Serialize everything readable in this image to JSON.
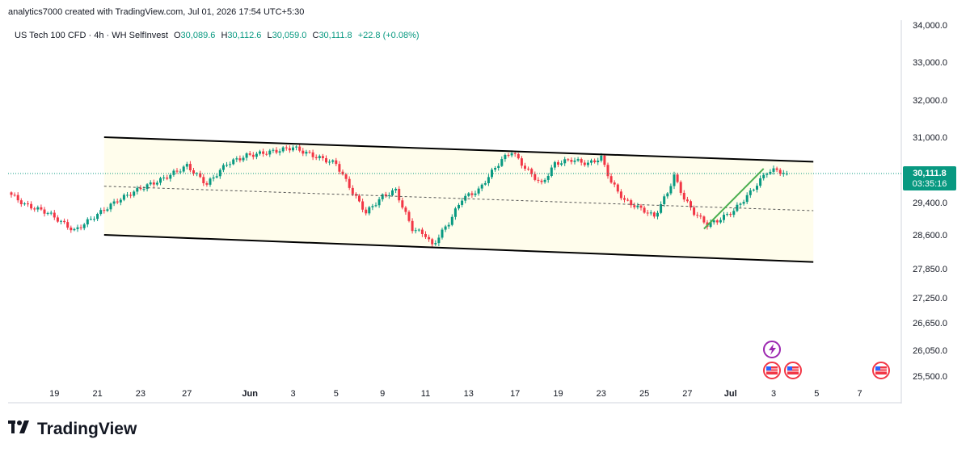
{
  "header": {
    "credit": "analytics7000 created with TradingView.com, Jul 01, 2026 17:54 UTC+5:30",
    "symbol": "US Tech 100 CFD · 4h · WH SelfInvest",
    "open_label": "O",
    "open_value": "30,089.6",
    "high_label": "H",
    "high_value": "30,112.6",
    "low_label": "L",
    "low_value": "30,059.0",
    "close_label": "C",
    "close_value": "30,111.8",
    "change": "+22.8 (+0.08%)"
  },
  "colors": {
    "up": "#089981",
    "down": "#f23645",
    "channel": "#000000",
    "trend": "#4caf50",
    "channel_fill": "#fffde7",
    "price_tag": "#089981",
    "event": "#9c27b0"
  },
  "price_tag": {
    "price": "30,111.8",
    "countdown": "03:35:16"
  },
  "branding": {
    "logo_text": "TradingView"
  },
  "events": {
    "icons": [
      "lightning-event-icon",
      "us-flag-icon",
      "us-flag-icon",
      "us-flag-icon"
    ]
  },
  "chart_data": {
    "type": "candlestick",
    "title": "US Tech 100 CFD · 4h · WH SelfInvest",
    "ylim": [
      25400,
      34100
    ],
    "y_ticks": [
      "34,000.0",
      "33,000.0",
      "32,000.0",
      "31,000.0",
      "29,400.0",
      "28,600.0",
      "27,850.0",
      "27,250.0",
      "26,650.0",
      "26,050.0",
      "25,500.0"
    ],
    "y_tick_values": [
      34000,
      33000,
      32000,
      31000,
      29400,
      28600,
      27850,
      27250,
      26650,
      26050,
      25500
    ],
    "x_ticks": [
      "19",
      "21",
      "23",
      "27",
      "Jun",
      "3",
      "5",
      "9",
      "11",
      "13",
      "17",
      "19",
      "23",
      "25",
      "27",
      "Jul",
      "3",
      "5",
      "7"
    ],
    "x_tick_bar_index": [
      13,
      26,
      39,
      53,
      72,
      85,
      98,
      112,
      125,
      138,
      152,
      165,
      178,
      191,
      204,
      217,
      230,
      243,
      256
    ],
    "path": [
      [
        0,
        29650
      ],
      [
        5,
        29350
      ],
      [
        12,
        29150
      ],
      [
        20,
        28700
      ],
      [
        26,
        29050
      ],
      [
        33,
        29450
      ],
      [
        40,
        29750
      ],
      [
        46,
        29950
      ],
      [
        54,
        30300
      ],
      [
        60,
        29850
      ],
      [
        66,
        30350
      ],
      [
        72,
        30550
      ],
      [
        80,
        30650
      ],
      [
        86,
        30750
      ],
      [
        92,
        30550
      ],
      [
        99,
        30350
      ],
      [
        104,
        29650
      ],
      [
        108,
        29150
      ],
      [
        113,
        29550
      ],
      [
        117,
        29700
      ],
      [
        119,
        29300
      ],
      [
        122,
        28750
      ],
      [
        126,
        28600
      ],
      [
        128,
        28350
      ],
      [
        133,
        28900
      ],
      [
        137,
        29500
      ],
      [
        142,
        29700
      ],
      [
        146,
        30150
      ],
      [
        149,
        30450
      ],
      [
        152,
        30650
      ],
      [
        156,
        30250
      ],
      [
        161,
        29850
      ],
      [
        165,
        30350
      ],
      [
        170,
        30450
      ],
      [
        175,
        30350
      ],
      [
        179,
        30500
      ],
      [
        182,
        29900
      ],
      [
        186,
        29450
      ],
      [
        192,
        29200
      ],
      [
        195,
        29050
      ],
      [
        199,
        29650
      ],
      [
        201,
        30050
      ],
      [
        204,
        29500
      ],
      [
        207,
        29150
      ],
      [
        211,
        28850
      ],
      [
        214,
        28950
      ],
      [
        219,
        29200
      ],
      [
        224,
        29650
      ],
      [
        229,
        30150
      ],
      [
        232,
        30200
      ],
      [
        234,
        30112
      ]
    ],
    "last": {
      "open": 30089.6,
      "high": 30112.6,
      "low": 30059.0,
      "close": 30111.8,
      "change": 22.8,
      "change_pct": 0.08
    },
    "drawings": {
      "channel_upper": [
        [
          28,
          31000
        ],
        [
          242,
          30400
        ]
      ],
      "channel_lower": [
        [
          28,
          28600
        ],
        [
          242,
          28000
        ]
      ],
      "channel_mid": [
        [
          28,
          29800
        ],
        [
          242,
          29200
        ]
      ],
      "trendline": [
        [
          209,
          28750
        ],
        [
          227,
          30230
        ]
      ]
    }
  }
}
